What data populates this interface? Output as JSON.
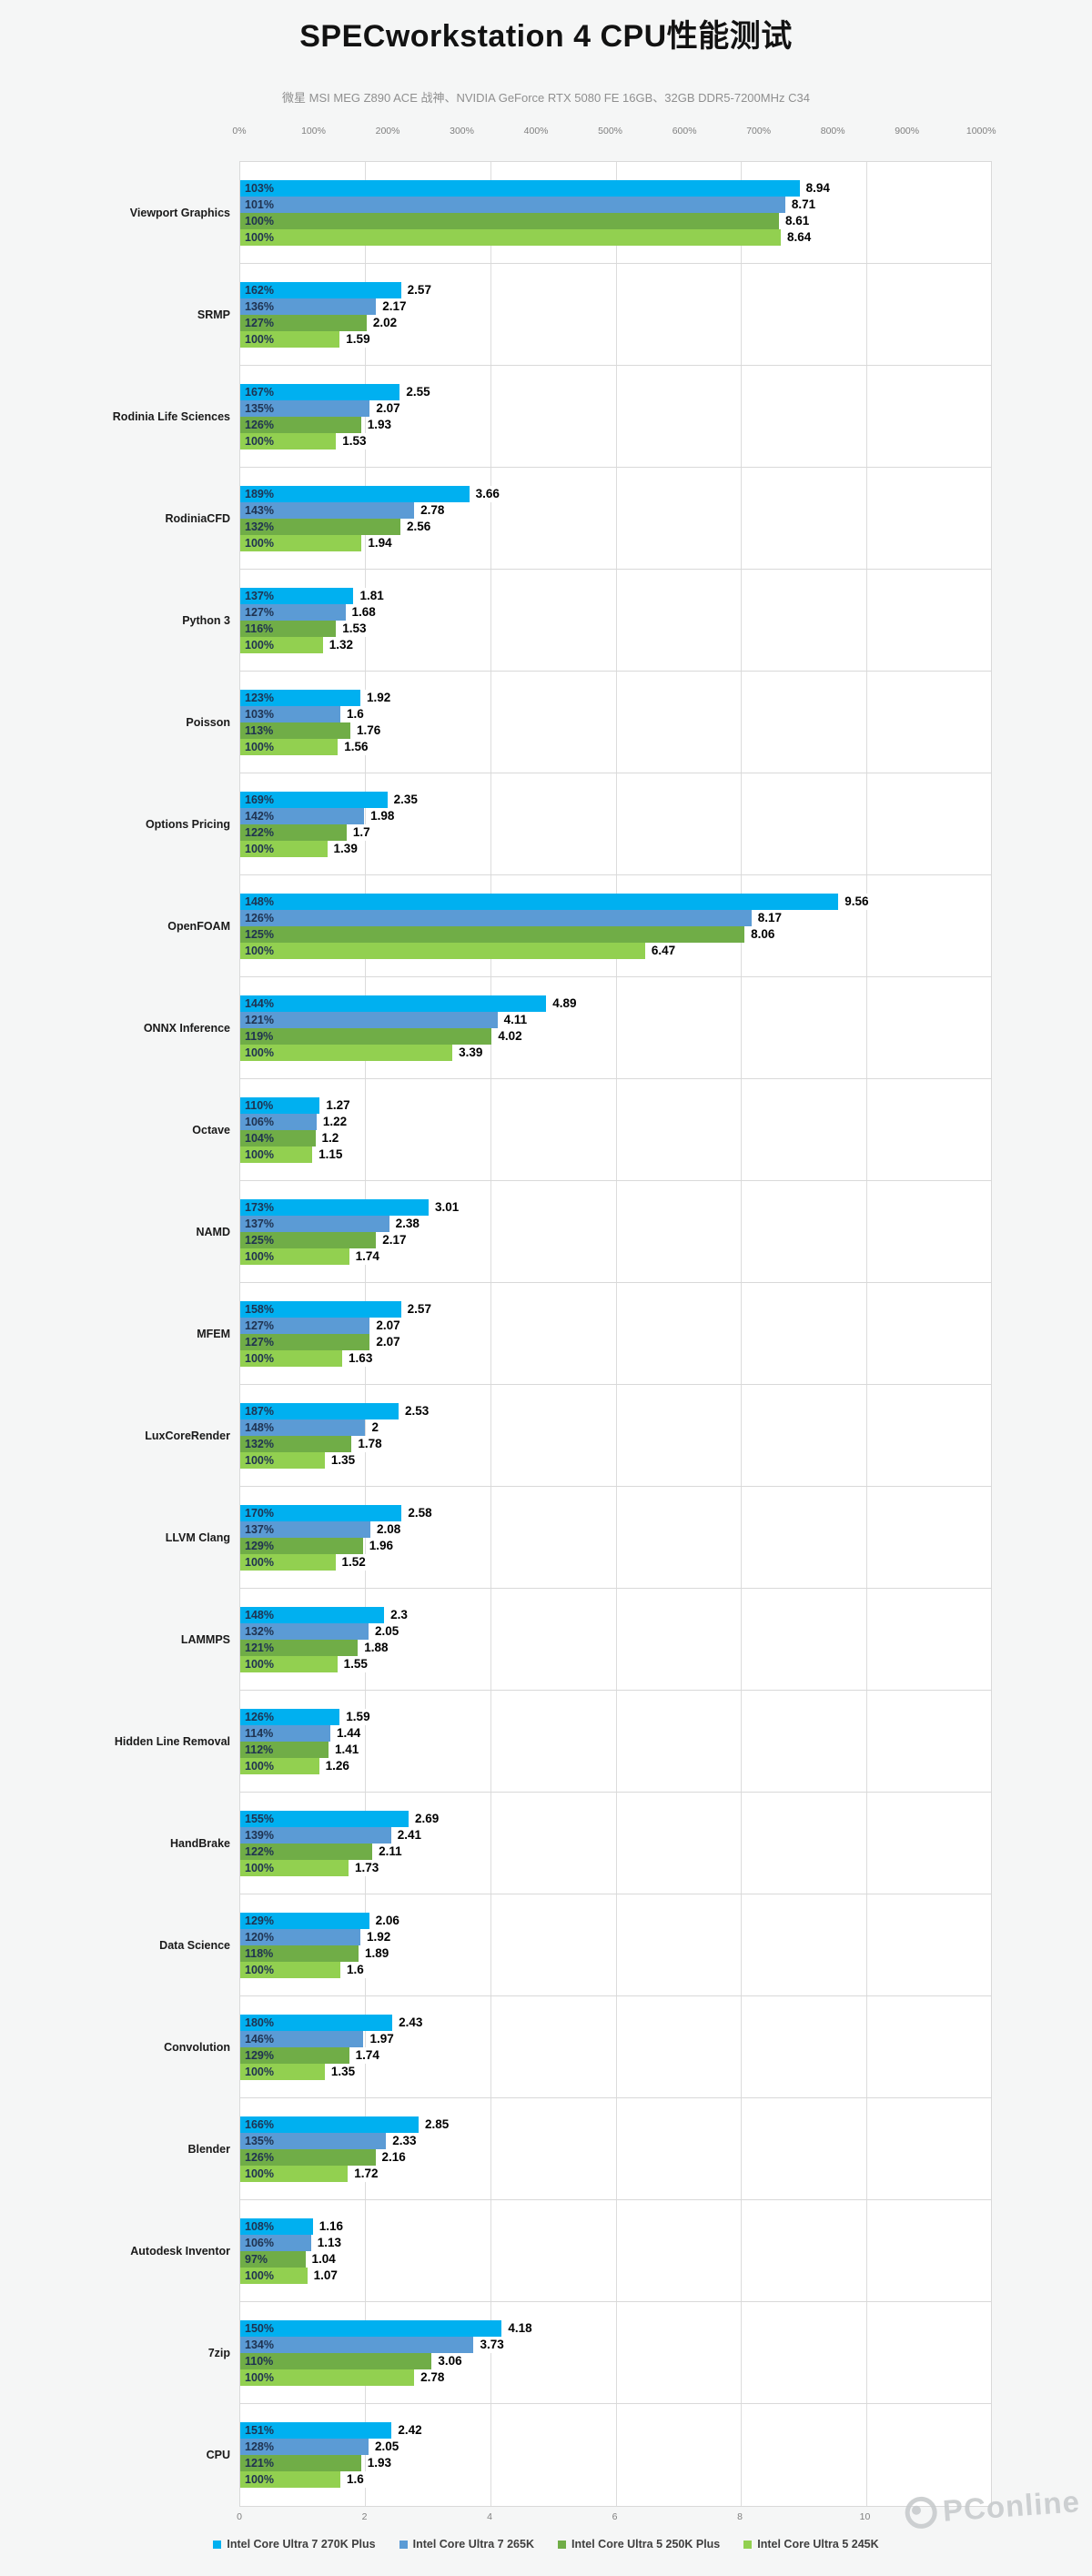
{
  "title": "SPECworkstation 4 CPU性能测试",
  "subtitle": "微星 MSI MEG Z890 ACE 战神、NVIDIA GeForce RTX 5080 FE 16GB、32GB DDR5-7200MHz C34",
  "watermark_text": "PConline",
  "chart_data": {
    "type": "bar",
    "orientation": "horizontal",
    "title": "SPECworkstation 4 CPU性能测试",
    "legend_position": "bottom",
    "grid": "vertical gridlines every 2 units, horizontal separators between category rows",
    "top_axis": {
      "unit": "percent",
      "ticks": [
        "0%",
        "100%",
        "200%",
        "300%",
        "400%",
        "500%",
        "600%",
        "700%",
        "800%",
        "900%",
        "1000%"
      ],
      "range": [
        0,
        1000
      ]
    },
    "bottom_axis": {
      "unit": "score",
      "ticks": [
        0,
        2,
        4,
        6,
        8,
        10
      ],
      "range": [
        0,
        12
      ]
    },
    "series": [
      {
        "name": "Intel Core Ultra 7 270K Plus",
        "color": "#00b0f0"
      },
      {
        "name": "Intel Core Ultra 7 265K",
        "color": "#5b9bd5"
      },
      {
        "name": "Intel Core Ultra 5 250K Plus",
        "color": "#70ad47"
      },
      {
        "name": "Intel Core Ultra 5 245K",
        "color": "#92d050"
      }
    ],
    "categories": [
      "Viewport Graphics",
      "SRMP",
      "Rodinia Life Sciences",
      "RodiniaCFD",
      "Python 3",
      "Poisson",
      "Options Pricing",
      "OpenFOAM",
      "ONNX Inference",
      "Octave",
      "NAMD",
      "MFEM",
      "LuxCoreRender",
      "LLVM Clang",
      "LAMMPS",
      "Hidden Line Removal",
      "HandBrake",
      "Data Science",
      "Convolution",
      "Blender",
      "Autodesk Inventor",
      "7zip",
      "CPU"
    ],
    "groups": [
      {
        "category": "Viewport Graphics",
        "bars": [
          {
            "pct": "103%",
            "value": 8.94,
            "label": "8.94"
          },
          {
            "pct": "101%",
            "value": 8.71,
            "label": "8.71"
          },
          {
            "pct": "100%",
            "value": 8.61,
            "label": "8.61"
          },
          {
            "pct": "100%",
            "value": 8.64,
            "label": "8.64"
          }
        ]
      },
      {
        "category": "SRMP",
        "bars": [
          {
            "pct": "162%",
            "value": 2.57,
            "label": "2.57"
          },
          {
            "pct": "136%",
            "value": 2.17,
            "label": "2.17"
          },
          {
            "pct": "127%",
            "value": 2.02,
            "label": "2.02"
          },
          {
            "pct": "100%",
            "value": 1.59,
            "label": "1.59"
          }
        ]
      },
      {
        "category": "Rodinia Life Sciences",
        "bars": [
          {
            "pct": "167%",
            "value": 2.55,
            "label": "2.55"
          },
          {
            "pct": "135%",
            "value": 2.07,
            "label": "2.07"
          },
          {
            "pct": "126%",
            "value": 1.93,
            "label": "1.93"
          },
          {
            "pct": "100%",
            "value": 1.53,
            "label": "1.53"
          }
        ]
      },
      {
        "category": "RodiniaCFD",
        "bars": [
          {
            "pct": "189%",
            "value": 3.66,
            "label": "3.66"
          },
          {
            "pct": "143%",
            "value": 2.78,
            "label": "2.78"
          },
          {
            "pct": "132%",
            "value": 2.56,
            "label": "2.56"
          },
          {
            "pct": "100%",
            "value": 1.94,
            "label": "1.94"
          }
        ]
      },
      {
        "category": "Python 3",
        "bars": [
          {
            "pct": "137%",
            "value": 1.81,
            "label": "1.81"
          },
          {
            "pct": "127%",
            "value": 1.68,
            "label": "1.68"
          },
          {
            "pct": "116%",
            "value": 1.53,
            "label": "1.53"
          },
          {
            "pct": "100%",
            "value": 1.32,
            "label": "1.32"
          }
        ]
      },
      {
        "category": "Poisson",
        "bars": [
          {
            "pct": "123%",
            "value": 1.92,
            "label": "1.92"
          },
          {
            "pct": "103%",
            "value": 1.6,
            "label": "1.6"
          },
          {
            "pct": "113%",
            "value": 1.76,
            "label": "1.76"
          },
          {
            "pct": "100%",
            "value": 1.56,
            "label": "1.56"
          }
        ]
      },
      {
        "category": "Options Pricing",
        "bars": [
          {
            "pct": "169%",
            "value": 2.35,
            "label": "2.35"
          },
          {
            "pct": "142%",
            "value": 1.98,
            "label": "1.98"
          },
          {
            "pct": "122%",
            "value": 1.7,
            "label": "1.7"
          },
          {
            "pct": "100%",
            "value": 1.39,
            "label": "1.39"
          }
        ]
      },
      {
        "category": "OpenFOAM",
        "bars": [
          {
            "pct": "148%",
            "value": 9.56,
            "label": "9.56"
          },
          {
            "pct": "126%",
            "value": 8.17,
            "label": "8.17"
          },
          {
            "pct": "125%",
            "value": 8.06,
            "label": "8.06"
          },
          {
            "pct": "100%",
            "value": 6.47,
            "label": "6.47"
          }
        ]
      },
      {
        "category": "ONNX Inference",
        "bars": [
          {
            "pct": "144%",
            "value": 4.89,
            "label": "4.89"
          },
          {
            "pct": "121%",
            "value": 4.11,
            "label": "4.11"
          },
          {
            "pct": "119%",
            "value": 4.02,
            "label": "4.02"
          },
          {
            "pct": "100%",
            "value": 3.39,
            "label": "3.39"
          }
        ]
      },
      {
        "category": "Octave",
        "bars": [
          {
            "pct": "110%",
            "value": 1.27,
            "label": "1.27"
          },
          {
            "pct": "106%",
            "value": 1.22,
            "label": "1.22"
          },
          {
            "pct": "104%",
            "value": 1.2,
            "label": "1.2"
          },
          {
            "pct": "100%",
            "value": 1.15,
            "label": "1.15"
          }
        ]
      },
      {
        "category": "NAMD",
        "bars": [
          {
            "pct": "173%",
            "value": 3.01,
            "label": "3.01"
          },
          {
            "pct": "137%",
            "value": 2.38,
            "label": "2.38"
          },
          {
            "pct": "125%",
            "value": 2.17,
            "label": "2.17"
          },
          {
            "pct": "100%",
            "value": 1.74,
            "label": "1.74"
          }
        ]
      },
      {
        "category": "MFEM",
        "bars": [
          {
            "pct": "158%",
            "value": 2.57,
            "label": "2.57"
          },
          {
            "pct": "127%",
            "value": 2.07,
            "label": "2.07"
          },
          {
            "pct": "127%",
            "value": 2.07,
            "label": "2.07"
          },
          {
            "pct": "100%",
            "value": 1.63,
            "label": "1.63"
          }
        ]
      },
      {
        "category": "LuxCoreRender",
        "bars": [
          {
            "pct": "187%",
            "value": 2.53,
            "label": "2.53"
          },
          {
            "pct": "148%",
            "value": 2,
            "label": "2"
          },
          {
            "pct": "132%",
            "value": 1.78,
            "label": "1.78"
          },
          {
            "pct": "100%",
            "value": 1.35,
            "label": "1.35"
          }
        ]
      },
      {
        "category": "LLVM Clang",
        "bars": [
          {
            "pct": "170%",
            "value": 2.58,
            "label": "2.58"
          },
          {
            "pct": "137%",
            "value": 2.08,
            "label": "2.08"
          },
          {
            "pct": "129%",
            "value": 1.96,
            "label": "1.96"
          },
          {
            "pct": "100%",
            "value": 1.52,
            "label": "1.52"
          }
        ]
      },
      {
        "category": "LAMMPS",
        "bars": [
          {
            "pct": "148%",
            "value": 2.3,
            "label": "2.3"
          },
          {
            "pct": "132%",
            "value": 2.05,
            "label": "2.05"
          },
          {
            "pct": "121%",
            "value": 1.88,
            "label": "1.88"
          },
          {
            "pct": "100%",
            "value": 1.55,
            "label": "1.55"
          }
        ]
      },
      {
        "category": "Hidden Line Removal",
        "bars": [
          {
            "pct": "126%",
            "value": 1.59,
            "label": "1.59"
          },
          {
            "pct": "114%",
            "value": 1.44,
            "label": "1.44"
          },
          {
            "pct": "112%",
            "value": 1.41,
            "label": "1.41"
          },
          {
            "pct": "100%",
            "value": 1.26,
            "label": "1.26"
          }
        ]
      },
      {
        "category": "HandBrake",
        "bars": [
          {
            "pct": "155%",
            "value": 2.69,
            "label": "2.69"
          },
          {
            "pct": "139%",
            "value": 2.41,
            "label": "2.41"
          },
          {
            "pct": "122%",
            "value": 2.11,
            "label": "2.11"
          },
          {
            "pct": "100%",
            "value": 1.73,
            "label": "1.73"
          }
        ]
      },
      {
        "category": "Data Science",
        "bars": [
          {
            "pct": "129%",
            "value": 2.06,
            "label": "2.06"
          },
          {
            "pct": "120%",
            "value": 1.92,
            "label": "1.92"
          },
          {
            "pct": "118%",
            "value": 1.89,
            "label": "1.89"
          },
          {
            "pct": "100%",
            "value": 1.6,
            "label": "1.6"
          }
        ]
      },
      {
        "category": "Convolution",
        "bars": [
          {
            "pct": "180%",
            "value": 2.43,
            "label": "2.43"
          },
          {
            "pct": "146%",
            "value": 1.97,
            "label": "1.97"
          },
          {
            "pct": "129%",
            "value": 1.74,
            "label": "1.74"
          },
          {
            "pct": "100%",
            "value": 1.35,
            "label": "1.35"
          }
        ]
      },
      {
        "category": "Blender",
        "bars": [
          {
            "pct": "166%",
            "value": 2.85,
            "label": "2.85"
          },
          {
            "pct": "135%",
            "value": 2.33,
            "label": "2.33"
          },
          {
            "pct": "126%",
            "value": 2.16,
            "label": "2.16"
          },
          {
            "pct": "100%",
            "value": 1.72,
            "label": "1.72"
          }
        ]
      },
      {
        "category": "Autodesk Inventor",
        "bars": [
          {
            "pct": "108%",
            "value": 1.16,
            "label": "1.16"
          },
          {
            "pct": "106%",
            "value": 1.13,
            "label": "1.13"
          },
          {
            "pct": "97%",
            "value": 1.04,
            "label": "1.04"
          },
          {
            "pct": "100%",
            "value": 1.07,
            "label": "1.07"
          }
        ]
      },
      {
        "category": "7zip",
        "bars": [
          {
            "pct": "150%",
            "value": 4.18,
            "label": "4.18"
          },
          {
            "pct": "134%",
            "value": 3.73,
            "label": "3.73"
          },
          {
            "pct": "110%",
            "value": 3.06,
            "label": "3.06"
          },
          {
            "pct": "100%",
            "value": 2.78,
            "label": "2.78"
          }
        ]
      },
      {
        "category": "CPU",
        "bars": [
          {
            "pct": "151%",
            "value": 2.42,
            "label": "2.42"
          },
          {
            "pct": "128%",
            "value": 2.05,
            "label": "2.05"
          },
          {
            "pct": "121%",
            "value": 1.93,
            "label": "1.93"
          },
          {
            "pct": "100%",
            "value": 1.6,
            "label": "1.6"
          }
        ]
      }
    ]
  }
}
